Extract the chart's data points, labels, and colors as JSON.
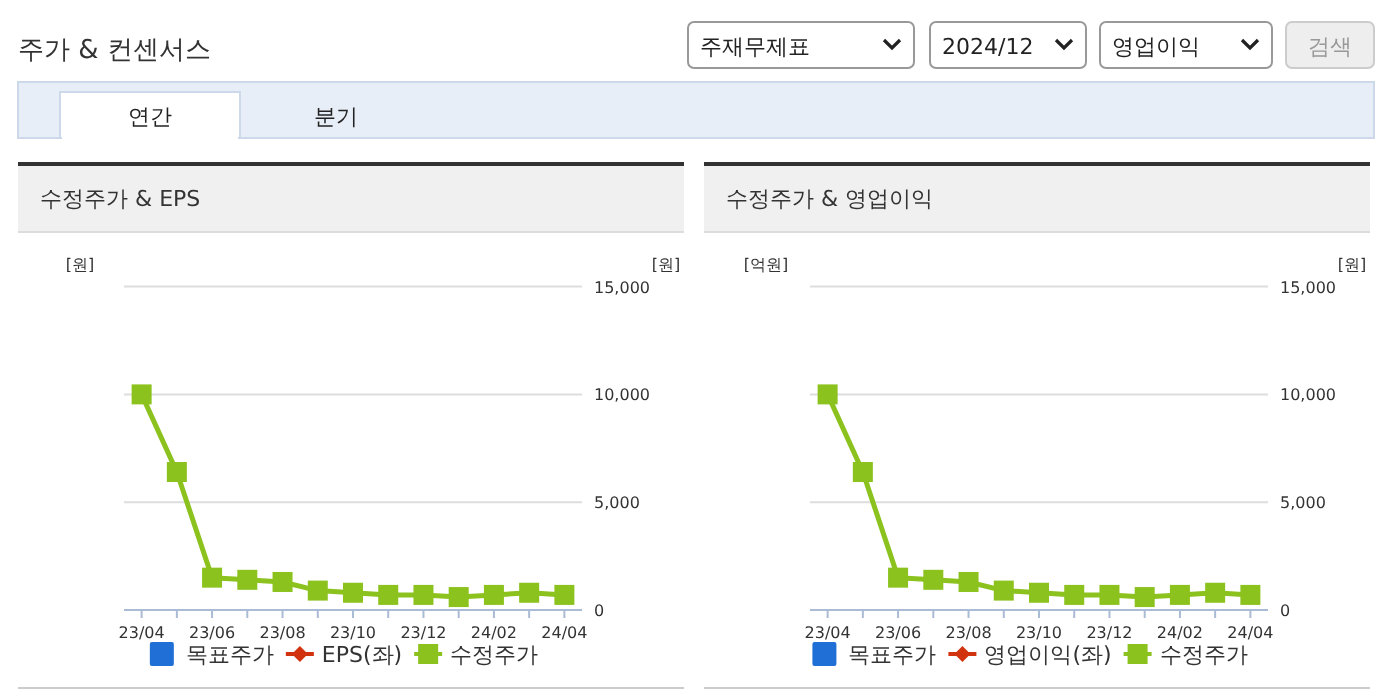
{
  "chart_data": [
    {
      "type": "line",
      "title": "수정주가 & EPS",
      "ylabel": "[원]",
      "y2label": "[원]",
      "annotations": [
        "주가 & 컨센서스",
        "주재무제표",
        "2024/12",
        "영업이익",
        "검색",
        "연간",
        "분기"
      ],
      "categories": [
        "23/04",
        null,
        "23/06",
        null,
        "23/08",
        null,
        "23/10",
        null,
        "23/12",
        null,
        "24/02",
        null,
        "24/04"
      ],
      "y2lim": [
        0,
        15000
      ],
      "y2ticks": [
        {
          "value": 0,
          "label": "0"
        },
        {
          "value": 5000,
          "label": "5,000"
        },
        {
          "value": 10000,
          "label": "10,000"
        },
        {
          "value": 15000,
          "label": "15,000"
        }
      ],
      "grid": "y",
      "legend": "bottom",
      "tick_labels": "x",
      "series": [
        {
          "name": "목표주가",
          "color": "#1f6fd6",
          "marker": "square",
          "axis": "y2",
          "values": [
            null,
            null,
            null,
            null,
            null,
            null,
            null,
            null,
            null,
            null,
            null,
            null,
            null
          ]
        },
        {
          "name": "EPS(좌)",
          "color": "#d1330f",
          "marker": "diamond",
          "values": [
            null,
            null,
            null,
            null,
            null,
            null,
            null,
            null,
            null,
            null,
            null,
            null,
            null
          ]
        },
        {
          "name": "수정주가",
          "color": "#8cc21e",
          "marker": "square",
          "axis": "y2",
          "values": [
            10000,
            6400,
            1500,
            1400,
            1300,
            900,
            800,
            700,
            700,
            600,
            700,
            800,
            700
          ]
        }
      ]
    },
    {
      "type": "line",
      "title": "수정주가 & 영업이익",
      "ylabel": "[억원]",
      "y2label": "[원]",
      "categories": [
        "23/04",
        null,
        "23/06",
        null,
        "23/08",
        null,
        "23/10",
        null,
        "23/12",
        null,
        "24/02",
        null,
        "24/04"
      ],
      "y2lim": [
        0,
        15000
      ],
      "y2ticks": [
        {
          "value": 0,
          "label": "0"
        },
        {
          "value": 5000,
          "label": "5,000"
        },
        {
          "value": 10000,
          "label": "10,000"
        },
        {
          "value": 15000,
          "label": "15,000"
        }
      ],
      "grid": "y",
      "legend": "bottom",
      "tick_labels": "x",
      "series": [
        {
          "name": "목표주가",
          "color": "#1f6fd6",
          "marker": "square",
          "axis": "y2",
          "values": [
            null,
            null,
            null,
            null,
            null,
            null,
            null,
            null,
            null,
            null,
            null,
            null,
            null
          ]
        },
        {
          "name": "영업이익(좌)",
          "color": "#d1330f",
          "marker": "diamond",
          "values": [
            null,
            null,
            null,
            null,
            null,
            null,
            null,
            null,
            null,
            null,
            null,
            null,
            null
          ]
        },
        {
          "name": "수정주가",
          "color": "#8cc21e",
          "marker": "square",
          "axis": "y2",
          "values": [
            10000,
            6400,
            1500,
            1400,
            1300,
            900,
            800,
            700,
            700,
            600,
            700,
            800,
            700
          ]
        }
      ]
    }
  ]
}
